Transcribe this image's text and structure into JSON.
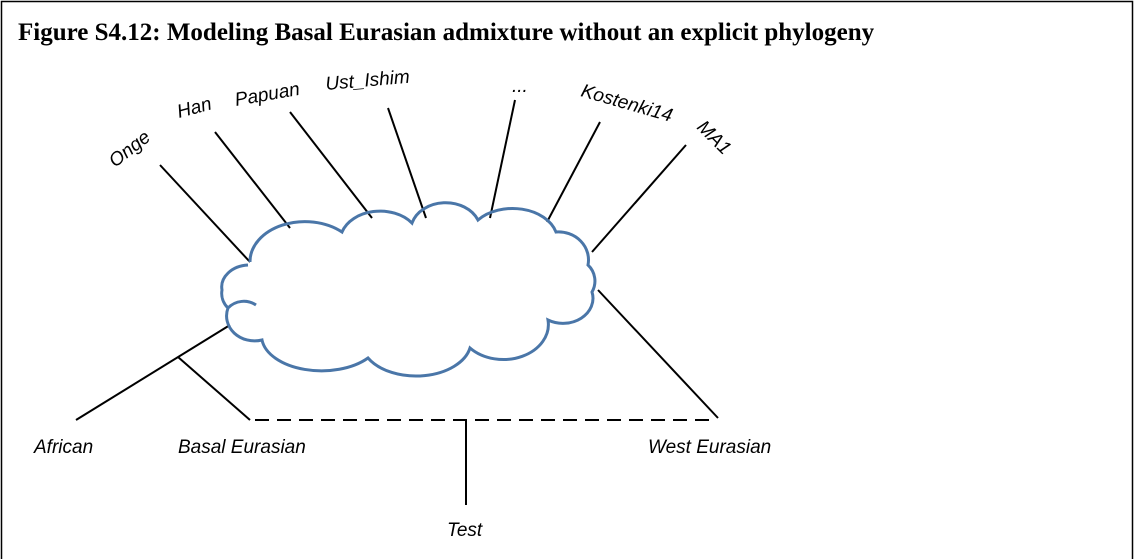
{
  "header": {
    "title": "Figure S4.12: Modeling Basal Eurasian admixture without an explicit phylogeny"
  },
  "nodes": [
    {
      "label": "Onge"
    },
    {
      "label": "Han"
    },
    {
      "label": "Papuan"
    },
    {
      "label": "Ust_Ishim"
    },
    {
      "label": "..."
    },
    {
      "label": "Kostenki14"
    },
    {
      "label": "MA1"
    },
    {
      "label": "African"
    },
    {
      "label": "Basal Eurasian"
    },
    {
      "label": "West Eurasian"
    },
    {
      "label": "Test"
    }
  ]
}
